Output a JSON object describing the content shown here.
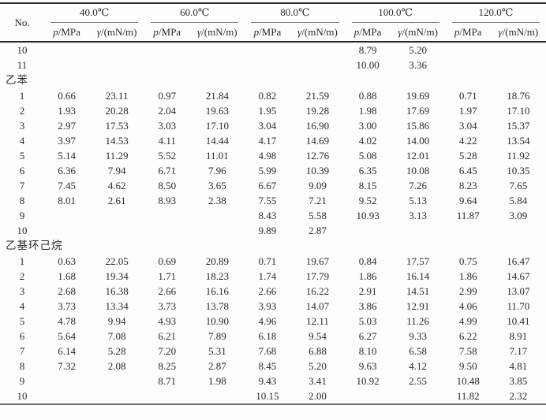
{
  "header": {
    "no_label": "No.",
    "temperatures": [
      "40.0℃",
      "60.0℃",
      "80.0℃",
      "100.0℃",
      "120.0℃"
    ],
    "pressure_symbol": "p",
    "pressure_unit": "/MPa",
    "tension_symbol": "γ",
    "tension_unit": "/(mN/m)"
  },
  "colors": {
    "text": "#2b2b2b",
    "rule_dark": "#2a2a2a",
    "rule_light": "#7a7a7a",
    "background": "#fdfdfc"
  },
  "rows": [
    {
      "no": "10",
      "v": [
        "",
        "",
        "",
        "",
        "",
        "",
        "8.79",
        "5.20",
        "",
        ""
      ]
    },
    {
      "no": "11",
      "v": [
        "",
        "",
        "",
        "",
        "",
        "",
        "10.00",
        "3.36",
        "",
        ""
      ]
    },
    {
      "section": "乙苯"
    },
    {
      "no": "1",
      "v": [
        "0.66",
        "23.11",
        "0.97",
        "21.84",
        "0.82",
        "21.59",
        "0.88",
        "19.69",
        "0.71",
        "18.76"
      ]
    },
    {
      "no": "2",
      "v": [
        "1.93",
        "20.28",
        "2.04",
        "19.63",
        "1.95",
        "19.28",
        "1.98",
        "17.69",
        "1.97",
        "17.10"
      ]
    },
    {
      "no": "3",
      "v": [
        "2.97",
        "17.53",
        "3.03",
        "17.10",
        "3.04",
        "16.90",
        "3.00",
        "15.86",
        "3.04",
        "15.37"
      ]
    },
    {
      "no": "4",
      "v": [
        "3.97",
        "14.53",
        "4.11",
        "14.44",
        "4.17",
        "14.69",
        "4.02",
        "14.00",
        "4.22",
        "13.54"
      ]
    },
    {
      "no": "5",
      "v": [
        "5.14",
        "11.29",
        "5.52",
        "11.01",
        "4.98",
        "12.76",
        "5.08",
        "12.01",
        "5.28",
        "11.92"
      ]
    },
    {
      "no": "6",
      "v": [
        "6.36",
        "7.94",
        "6.71",
        "7.96",
        "5.99",
        "10.39",
        "6.35",
        "10.08",
        "6.45",
        "10.35"
      ]
    },
    {
      "no": "7",
      "v": [
        "7.45",
        "4.62",
        "8.50",
        "3.65",
        "6.67",
        "9.09",
        "8.15",
        "7.26",
        "8.23",
        "7.65"
      ]
    },
    {
      "no": "8",
      "v": [
        "8.01",
        "2.61",
        "8.93",
        "2.38",
        "7.55",
        "7.21",
        "9.52",
        "5.13",
        "9.64",
        "5.84"
      ]
    },
    {
      "no": "9",
      "v": [
        "",
        "",
        "",
        "",
        "8.43",
        "5.58",
        "10.93",
        "3.13",
        "11.87",
        "3.09"
      ]
    },
    {
      "no": "10",
      "v": [
        "",
        "",
        "",
        "",
        "9.89",
        "2.87",
        "",
        "",
        "",
        ""
      ]
    },
    {
      "section": "乙基环己烷"
    },
    {
      "no": "1",
      "v": [
        "0.63",
        "22.05",
        "0.69",
        "20.89",
        "0.71",
        "19.67",
        "0.84",
        "17.57",
        "0.75",
        "16.47"
      ]
    },
    {
      "no": "2",
      "v": [
        "1.68",
        "19.34",
        "1.71",
        "18.23",
        "1.74",
        "17.79",
        "1.86",
        "16.14",
        "1.86",
        "14.67"
      ]
    },
    {
      "no": "3",
      "v": [
        "2.68",
        "16.38",
        "2.66",
        "16.16",
        "2.66",
        "16.22",
        "2.91",
        "14.51",
        "2.99",
        "13.07"
      ]
    },
    {
      "no": "4",
      "v": [
        "3.73",
        "13.34",
        "3.73",
        "13.78",
        "3.93",
        "14.07",
        "3.86",
        "12.91",
        "4.06",
        "11.70"
      ]
    },
    {
      "no": "5",
      "v": [
        "4.78",
        "9.94",
        "4.93",
        "10.90",
        "4.96",
        "12.11",
        "5.03",
        "11.26",
        "4.99",
        "10.41"
      ]
    },
    {
      "no": "6",
      "v": [
        "5.64",
        "7.08",
        "6.21",
        "7.89",
        "6.18",
        "9.54",
        "6.27",
        "9.33",
        "6.22",
        "8.91"
      ]
    },
    {
      "no": "7",
      "v": [
        "6.14",
        "5.28",
        "7.20",
        "5.31",
        "7.68",
        "6.88",
        "8.10",
        "6.58",
        "7.58",
        "7.17"
      ]
    },
    {
      "no": "8",
      "v": [
        "7.32",
        "2.08",
        "8.25",
        "2.87",
        "8.45",
        "5.20",
        "9.63",
        "4.12",
        "9.50",
        "4.81"
      ]
    },
    {
      "no": "9",
      "v": [
        "",
        "",
        "8.71",
        "1.98",
        "9.43",
        "3.41",
        "10.92",
        "2.55",
        "10.48",
        "3.85"
      ]
    },
    {
      "no": "10",
      "v": [
        "",
        "",
        "",
        "",
        "10.15",
        "2.00",
        "",
        "",
        "11.82",
        "2.32"
      ]
    }
  ]
}
